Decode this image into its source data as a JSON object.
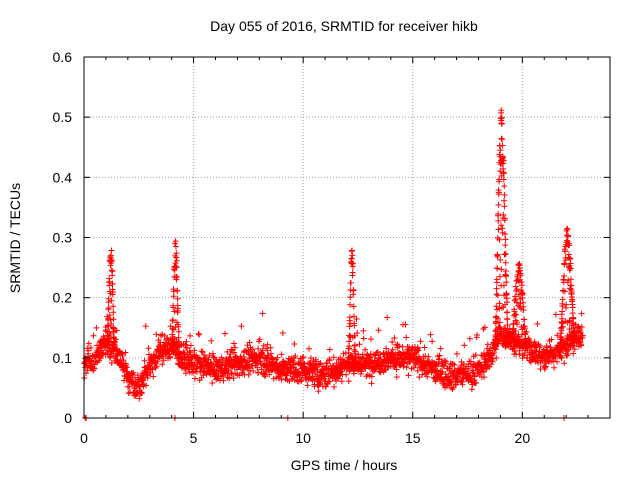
{
  "chart_data": {
    "type": "scatter",
    "title": "Day 055 of 2016, SRMTID for receiver hikb",
    "xlabel": "GPS time / hours",
    "ylabel": "SRMTID / TECUs",
    "xlim": [
      0,
      24
    ],
    "ylim": [
      0,
      0.6
    ],
    "x_ticks": [
      0,
      5,
      10,
      15,
      20
    ],
    "x_tick_labels": [
      "0",
      "5",
      "10",
      "15",
      "20"
    ],
    "y_ticks": [
      0,
      0.1,
      0.2,
      0.3,
      0.4,
      0.5,
      0.6
    ],
    "y_tick_labels": [
      "0",
      "0.1",
      "0.2",
      "0.3",
      "0.4",
      "0.5",
      "0.6"
    ],
    "grid": true,
    "marker": "+",
    "marker_color": "#ff0000",
    "series": [
      {
        "name": "SRMTID",
        "baseline_profile": [
          [
            0.0,
            0.09
          ],
          [
            0.5,
            0.1
          ],
          [
            1.0,
            0.13
          ],
          [
            1.5,
            0.11
          ],
          [
            2.0,
            0.07
          ],
          [
            2.5,
            0.05
          ],
          [
            3.0,
            0.09
          ],
          [
            3.5,
            0.11
          ],
          [
            4.0,
            0.12
          ],
          [
            4.5,
            0.1
          ],
          [
            5.0,
            0.09
          ],
          [
            6.0,
            0.08
          ],
          [
            7.0,
            0.09
          ],
          [
            8.0,
            0.1
          ],
          [
            9.0,
            0.08
          ],
          [
            10.0,
            0.08
          ],
          [
            11.0,
            0.07
          ],
          [
            12.0,
            0.09
          ],
          [
            13.0,
            0.09
          ],
          [
            14.0,
            0.1
          ],
          [
            15.0,
            0.1
          ],
          [
            16.0,
            0.08
          ],
          [
            17.0,
            0.07
          ],
          [
            18.0,
            0.08
          ],
          [
            18.5,
            0.1
          ],
          [
            19.0,
            0.14
          ],
          [
            19.5,
            0.13
          ],
          [
            20.0,
            0.12
          ],
          [
            21.0,
            0.1
          ],
          [
            22.0,
            0.12
          ],
          [
            22.7,
            0.14
          ]
        ],
        "x_range": [
          0.0,
          22.75
        ],
        "n_background_points": 2100,
        "spikes": [
          {
            "x_start": 1.05,
            "x_end": 1.4,
            "peak": 0.29,
            "n": 40
          },
          {
            "x_start": 4.0,
            "x_end": 4.35,
            "peak": 0.3,
            "n": 40
          },
          {
            "x_start": 12.05,
            "x_end": 12.4,
            "peak": 0.28,
            "n": 40
          },
          {
            "x_start": 18.75,
            "x_end": 19.35,
            "peak": 0.52,
            "n": 80
          },
          {
            "x_start": 19.5,
            "x_end": 20.2,
            "peak": 0.26,
            "n": 50
          },
          {
            "x_start": 21.7,
            "x_end": 22.4,
            "peak": 0.32,
            "n": 70
          }
        ],
        "zero_points": [
          0.05,
          0.1,
          4.15,
          9.3,
          21.9
        ]
      }
    ]
  }
}
